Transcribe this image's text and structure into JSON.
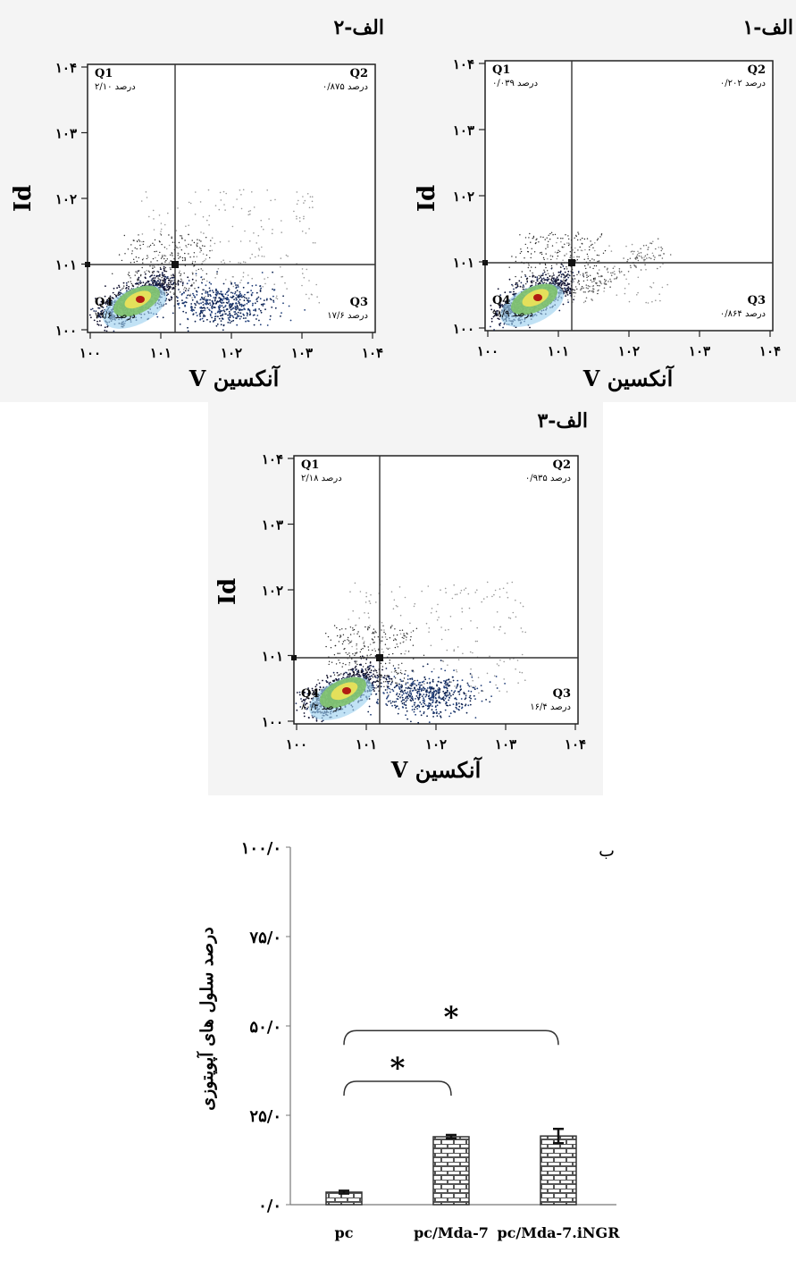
{
  "flow_panels": [
    {
      "id": "p1",
      "panel_label": "الف-۱",
      "y_axis_label": "Id",
      "x_axis_label": "آنکسین V",
      "tick_labels": [
        "۱۰۰",
        "۱۰۱",
        "۱۰۲",
        "۱۰۳",
        "۱۰۴"
      ],
      "quadrants": [
        {
          "name": "Q1",
          "value": "۰/۰۳۹ درصد"
        },
        {
          "name": "Q2",
          "value": "۰/۲۰۲ درصد"
        },
        {
          "name": "Q3",
          "value": "۰/۸۶۴ درصد"
        },
        {
          "name": "Q4",
          "value": "۹۸/۹ درصد"
        }
      ]
    },
    {
      "id": "p2",
      "panel_label": "الف-۲",
      "y_axis_label": "Id",
      "x_axis_label": "آنکسین V",
      "tick_labels": [
        "۱۰۰",
        "۱۰۱",
        "۱۰۲",
        "۱۰۳",
        "۱۰۴"
      ],
      "quadrants": [
        {
          "name": "Q1",
          "value": "۲/۱۰ درصد"
        },
        {
          "name": "Q2",
          "value": "۰/۸۷۵ درصد"
        },
        {
          "name": "Q3",
          "value": "۱۷/۶ درصد"
        },
        {
          "name": "Q4",
          "value": "۷۹/۶ درصد"
        }
      ]
    },
    {
      "id": "p3",
      "panel_label": "الف-۳",
      "y_axis_label": "Id",
      "x_axis_label": "آنکسین V",
      "tick_labels": [
        "۱۰۰",
        "۱۰۱",
        "۱۰۲",
        "۱۰۳",
        "۱۰۴"
      ],
      "quadrants": [
        {
          "name": "Q1",
          "value": "۲/۱۸ درصد"
        },
        {
          "name": "Q2",
          "value": "۰/۹۳۵ درصد"
        },
        {
          "name": "Q3",
          "value": "۱۶/۴ درصد"
        },
        {
          "name": "Q4",
          "value": "۸۰/۴ درصد"
        }
      ]
    }
  ],
  "chart_data": {
    "type": "bar",
    "panel_label": "ب",
    "ylabel": "درصد سلول های آپوپتوزی",
    "categories": [
      "pc",
      "pc/Mda-7",
      "pc/Mda-7.iNGR"
    ],
    "values": [
      3.5,
      19.0,
      19.2
    ],
    "errors": [
      0.4,
      0.5,
      2.0
    ],
    "ylim": [
      0,
      100
    ],
    "y_ticks": [
      0,
      25,
      50,
      75,
      100
    ],
    "y_tick_labels": [
      "۰/۰",
      "۲۵/۰",
      "۵۰/۰",
      "۷۵/۰",
      "۱۰۰/۰"
    ],
    "significance": [
      {
        "from": 0,
        "to": 1,
        "label": "*"
      },
      {
        "from": 0,
        "to": 2,
        "label": "*"
      }
    ],
    "bar_pattern": "brick",
    "grid": false
  }
}
